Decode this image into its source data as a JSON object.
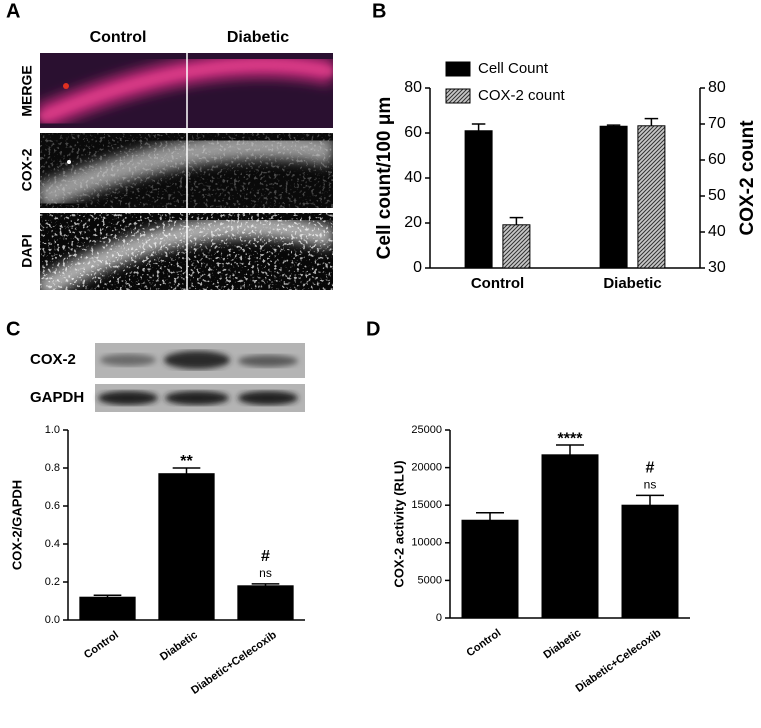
{
  "panel_a": {
    "panel_label": "A",
    "columns": [
      "Control",
      "Diabetic"
    ],
    "rows": [
      "MERGE",
      "COX-2",
      "DAPI"
    ]
  },
  "chart_data": [
    {
      "type": "bar",
      "panel_label": "B",
      "categories": [
        "Control",
        "Diabetic"
      ],
      "ylabel": "Cell count/100 μm",
      "y2label": "COX-2 count",
      "ylim": [
        0,
        80
      ],
      "yticks": [
        0,
        20,
        40,
        60,
        80
      ],
      "y2lim": [
        30,
        80
      ],
      "y2ticks": [
        30,
        40,
        50,
        60,
        70,
        80
      ],
      "legend": "upper left",
      "series": [
        {
          "name": "Cell Count",
          "color": "#000000",
          "values": [
            61,
            63
          ],
          "errors": [
            3,
            0.5
          ]
        },
        {
          "name": "COX-2 count",
          "color": "#9a9a9a",
          "hatch": true,
          "axis": "y2",
          "values": [
            42,
            69.5
          ],
          "errors": [
            2,
            2
          ]
        }
      ]
    },
    {
      "type": "bar",
      "panel_label": "C",
      "blot_labels": [
        "COX-2",
        "GAPDH"
      ],
      "categories": [
        "Control",
        "Diabetic",
        "Diabetic+Celecoxib"
      ],
      "values": [
        0.12,
        0.77,
        0.18
      ],
      "errors": [
        0.01,
        0.03,
        0.01
      ],
      "color": "#000000",
      "ylabel": "COX-2/GAPDH",
      "ylim": [
        0,
        1.0
      ],
      "yticks": [
        {
          "value": 0,
          "label": "0.0"
        },
        0.2,
        0.4,
        0.6,
        0.8,
        {
          "value": 1.0,
          "label": "1.0"
        }
      ],
      "bar_notes": [
        [],
        [
          "**"
        ],
        [
          "#",
          "ns"
        ]
      ]
    },
    {
      "type": "bar",
      "panel_label": "D",
      "categories": [
        "Control",
        "Diabetic",
        "Diabetic+Celecoxib"
      ],
      "values": [
        13000,
        21700,
        15000
      ],
      "errors": [
        1000,
        1300,
        1300
      ],
      "color": "#000000",
      "ylabel": "COX-2 activity (RLU)",
      "ylim": [
        0,
        25000
      ],
      "yticks": [
        0,
        5000,
        10000,
        15000,
        20000,
        25000
      ],
      "bar_notes": [
        [],
        [
          "****"
        ],
        [
          "#",
          "ns"
        ]
      ]
    }
  ]
}
